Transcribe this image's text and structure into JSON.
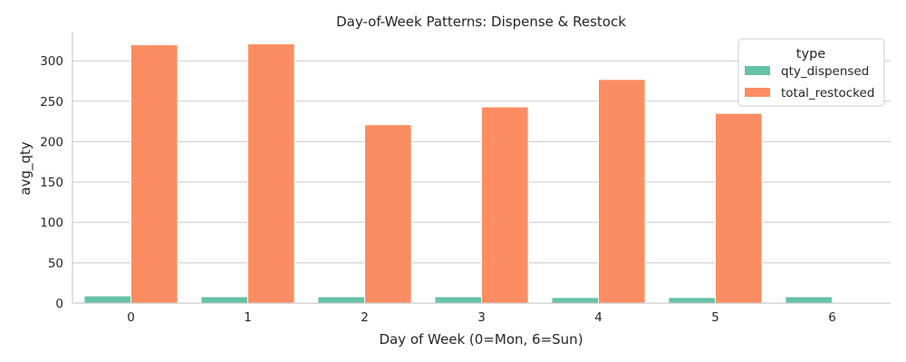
{
  "chart_data": {
    "type": "bar",
    "title": "Day-of-Week Patterns: Dispense & Restock",
    "xlabel": "Day of Week (0=Mon, 6=Sun)",
    "ylabel": "avg_qty",
    "categories": [
      "0",
      "1",
      "2",
      "3",
      "4",
      "5",
      "6"
    ],
    "series": [
      {
        "name": "qty_dispensed",
        "color": "#66c2a5",
        "values": [
          9,
          8,
          8,
          8,
          7,
          7,
          8
        ]
      },
      {
        "name": "total_restocked",
        "color": "#fc8d62",
        "values": [
          320,
          321,
          221,
          243,
          277,
          235,
          0
        ]
      }
    ],
    "ylim": [
      0,
      335
    ],
    "yticks": [
      0,
      50,
      100,
      150,
      200,
      250,
      300
    ],
    "grid": true,
    "legend": {
      "title": "type",
      "position": "top-right"
    }
  }
}
